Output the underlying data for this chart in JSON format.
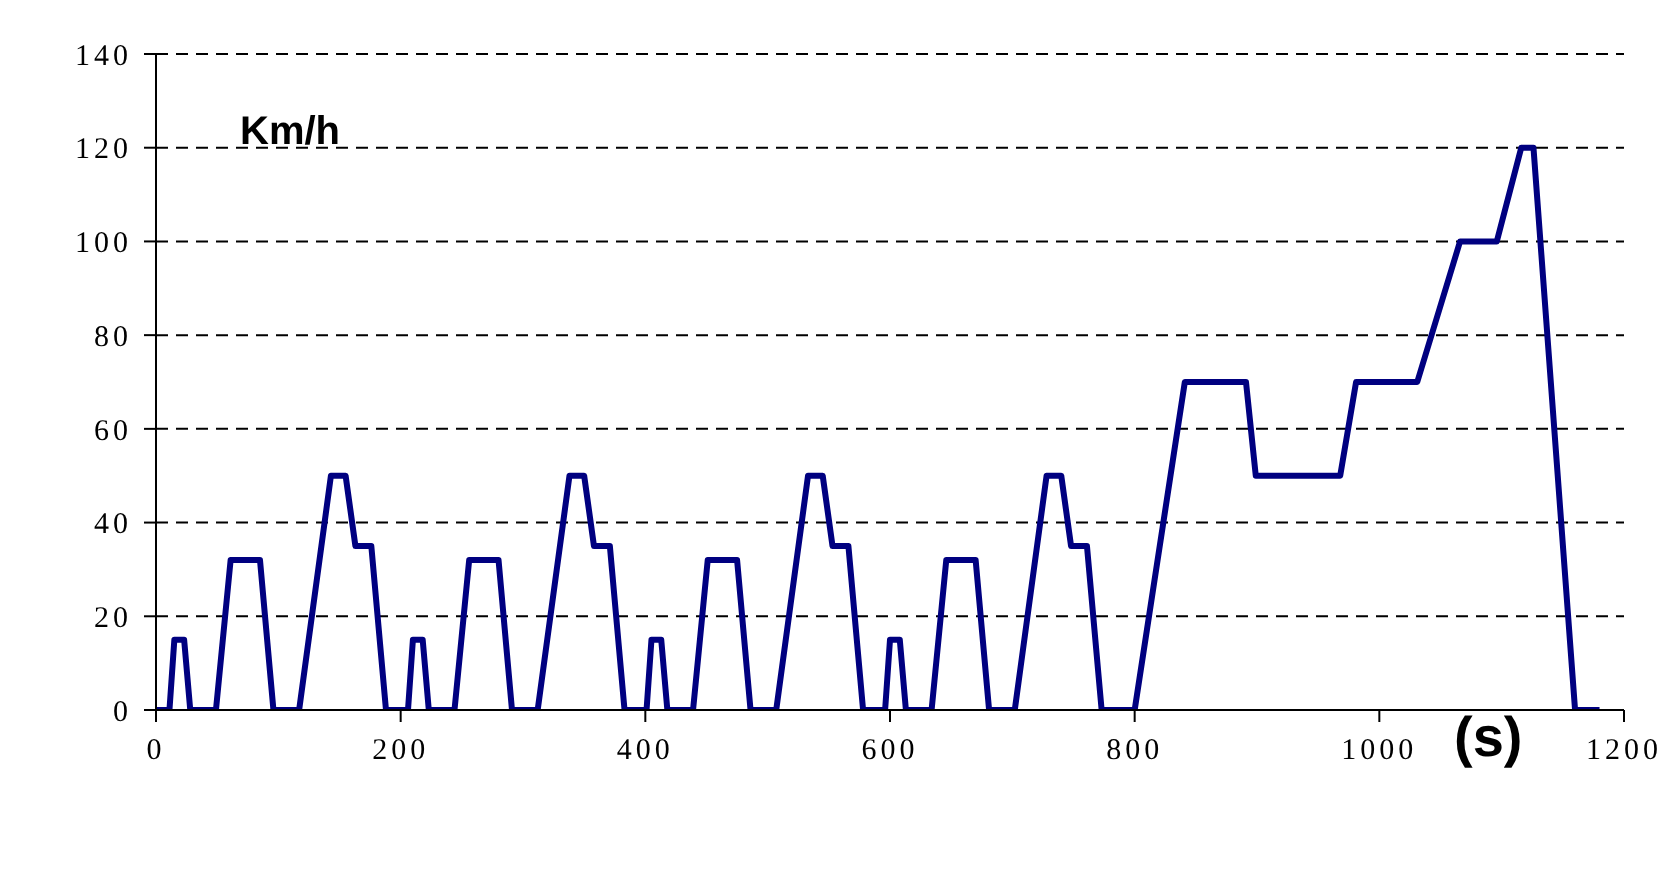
{
  "chart_data": {
    "type": "line",
    "xlabel": "(s)",
    "ylabel": "Km/h",
    "x": [
      0,
      11,
      15,
      23,
      28,
      49,
      61,
      85,
      96,
      117,
      143,
      155,
      163,
      176,
      188,
      195,
      206,
      210,
      218,
      223,
      244,
      256,
      280,
      291,
      312,
      338,
      350,
      358,
      371,
      383,
      390,
      401,
      405,
      413,
      418,
      439,
      451,
      475,
      486,
      507,
      533,
      545,
      553,
      566,
      578,
      585,
      596,
      600,
      608,
      613,
      634,
      646,
      670,
      681,
      702,
      728,
      740,
      748,
      761,
      773,
      780,
      800,
      841,
      891,
      899,
      968,
      981,
      1031,
      1066,
      1096,
      1116,
      1126,
      1160,
      1180
    ],
    "values": [
      0,
      0,
      15,
      15,
      0,
      0,
      32,
      32,
      0,
      0,
      50,
      50,
      35,
      35,
      0,
      0,
      0,
      15,
      15,
      0,
      0,
      32,
      32,
      0,
      0,
      50,
      50,
      35,
      35,
      0,
      0,
      0,
      15,
      15,
      0,
      0,
      32,
      32,
      0,
      0,
      50,
      50,
      35,
      35,
      0,
      0,
      0,
      15,
      15,
      0,
      0,
      32,
      32,
      0,
      0,
      50,
      50,
      35,
      35,
      0,
      0,
      0,
      70,
      70,
      50,
      50,
      70,
      70,
      100,
      100,
      120,
      120,
      0,
      0
    ],
    "color": "#000080",
    "line_style": "solid",
    "marker": "none",
    "xlim": [
      0,
      1200
    ],
    "xticks": [
      0,
      200,
      400,
      600,
      800,
      1000,
      1200
    ],
    "ylim": [
      0,
      140
    ],
    "yticks": [
      0,
      20,
      40,
      60,
      80,
      100,
      120,
      140
    ],
    "grid": "y"
  }
}
